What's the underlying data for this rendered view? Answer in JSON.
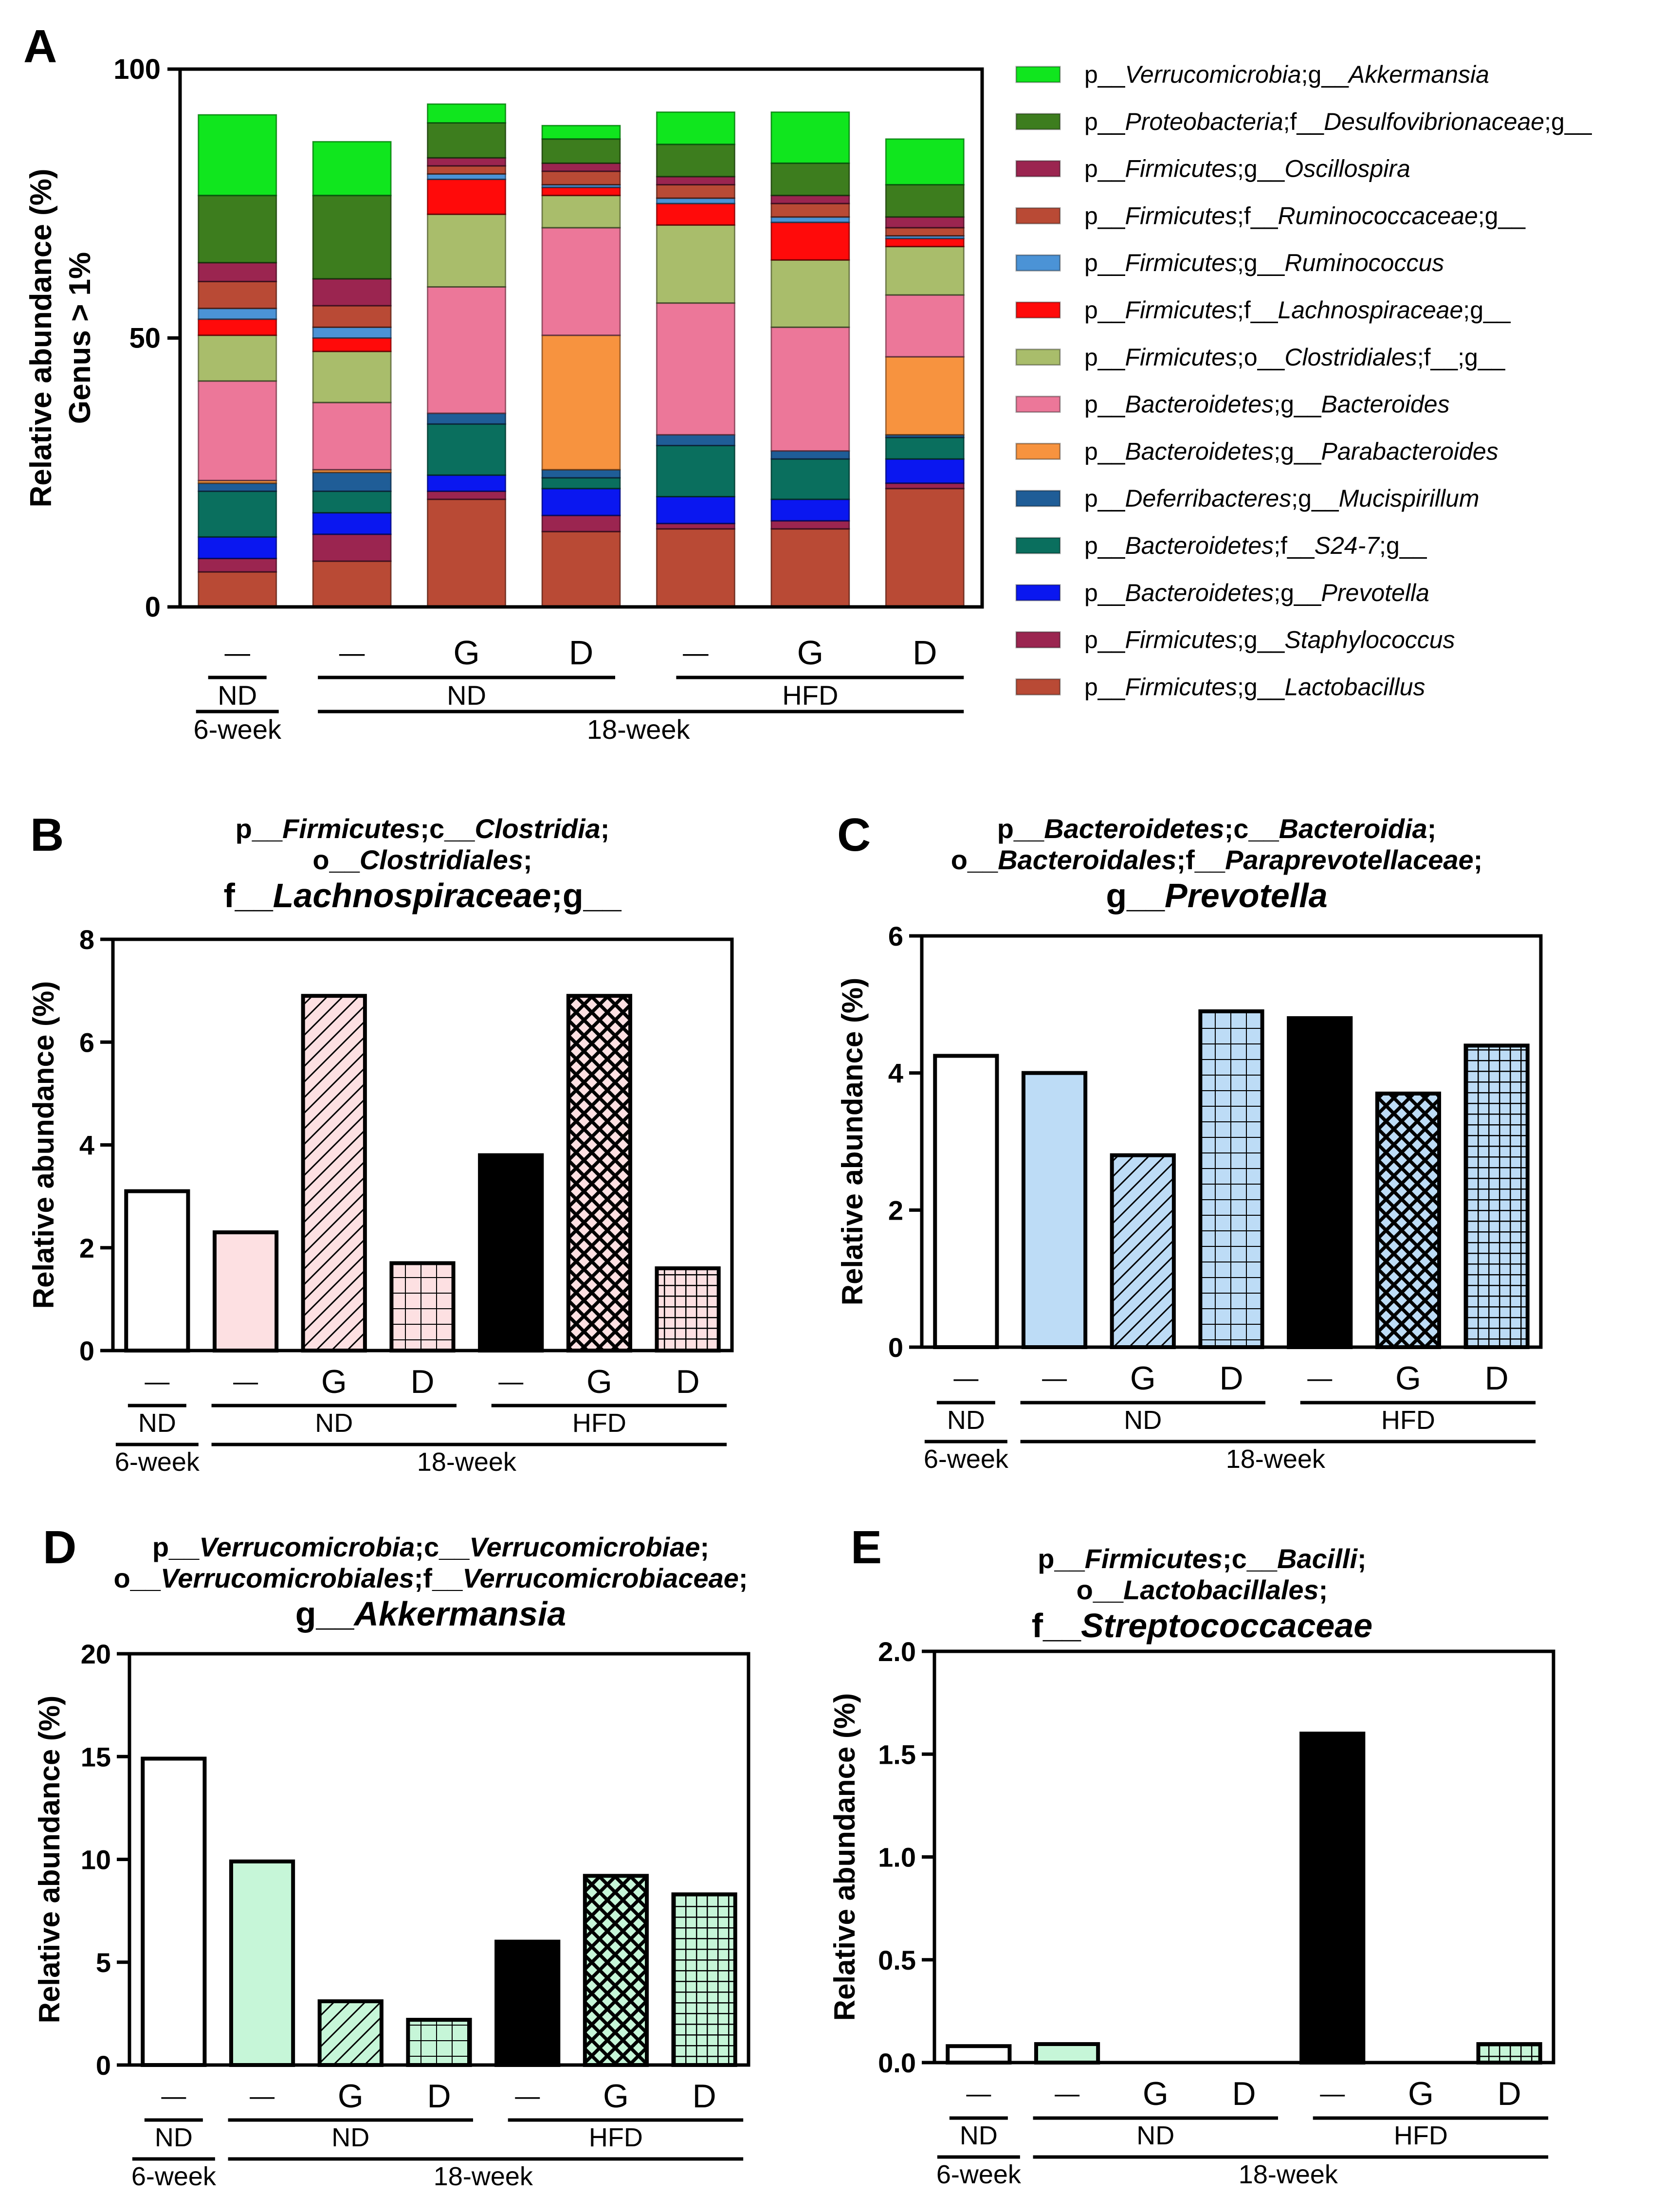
{
  "figure": {
    "panel_labels": [
      "A",
      "B",
      "C",
      "D",
      "E"
    ],
    "group_labels": [
      "ND",
      "ND",
      "HFD"
    ],
    "time_labels": [
      "6-week",
      "18-week"
    ]
  },
  "chart_data": [
    {
      "panel": "A",
      "type": "bar",
      "stacked": true,
      "ylabel": [
        "Relative abundance (%)",
        "Genus > 1%"
      ],
      "ylim": [
        0,
        100
      ],
      "yticks": [
        0,
        50,
        100
      ],
      "categories": [
        "—",
        "—",
        "G",
        "D",
        "—",
        "G",
        "D"
      ],
      "series": [
        {
          "name": "p__Firmicutes;g__Lactobacillus",
          "color": "#b94a35",
          "values": [
            6.5,
            8.5,
            20,
            14,
            14.5,
            14.5,
            22
          ]
        },
        {
          "name": "p__Firmicutes;g__Staphylococcus",
          "color": "#9b2550",
          "values": [
            2.5,
            5,
            1.5,
            3,
            1,
            1.5,
            1
          ]
        },
        {
          "name": "p__Bacteroidetes;g__Prevotella",
          "color": "#0a17f0",
          "values": [
            4,
            4,
            3,
            5,
            5,
            4,
            4.5
          ]
        },
        {
          "name": "p__Bacteroidetes;f__S24-7;g__",
          "color": "#0a6f5e",
          "values": [
            8.5,
            4,
            9.5,
            2,
            9.5,
            7.5,
            4
          ]
        },
        {
          "name": "p__Deferribacteres;g__Mucispirillum",
          "color": "#1f5d97",
          "values": [
            1.5,
            3.5,
            2,
            1.5,
            2,
            1.5,
            0.5
          ]
        },
        {
          "name": "p__Bacteroidetes;g__Parabacteroides",
          "color": "#f7933f",
          "values": [
            0.5,
            0.5,
            0,
            25,
            0,
            0,
            14.5
          ]
        },
        {
          "name": "p__Bacteroidetes;g__Bacteroides",
          "color": "#ec7799",
          "values": [
            18.5,
            12.5,
            23.5,
            20,
            24.5,
            23,
            11.5
          ]
        },
        {
          "name": "p__Firmicutes;o__Clostridiales;f__;g__",
          "color": "#a9bd6b",
          "values": [
            8.5,
            9.5,
            13.5,
            6,
            14.5,
            12.5,
            9
          ]
        },
        {
          "name": "p__Firmicutes;f__Lachnospiraceae;g__",
          "color": "#ff0a0a",
          "values": [
            3,
            2.5,
            6.5,
            1.5,
            4,
            7,
            1.5
          ]
        },
        {
          "name": "p__Firmicutes;g__Ruminococcus",
          "color": "#4b93d6",
          "values": [
            2,
            2,
            1,
            0.5,
            1,
            1,
            0.5
          ]
        },
        {
          "name": "p__Firmicutes;f__Ruminococcaceae;g__",
          "color": "#b94a35",
          "values": [
            5,
            4,
            1.5,
            2.5,
            2.5,
            2.5,
            1.5
          ]
        },
        {
          "name": "p__Firmicutes;g__Oscillospira",
          "color": "#9b2550",
          "values": [
            3.5,
            5,
            1.5,
            1.5,
            1.5,
            1.5,
            2
          ]
        },
        {
          "name": "p__Proteobacteria;f__Desulfovibrionaceae;g__",
          "color": "#3d7d1e",
          "values": [
            12.5,
            15.5,
            6.5,
            4.5,
            6,
            6,
            6
          ]
        },
        {
          "name": "p__Verrucomicrobia;g__Akkermansia",
          "color": "#10e61e",
          "values": [
            15,
            10,
            3.5,
            2.5,
            6,
            9.5,
            8.5
          ]
        }
      ],
      "legend_order": [
        "p__Verrucomicrobia;g__Akkermansia",
        "p__Proteobacteria;f__Desulfovibrionaceae;g__",
        "p__Firmicutes;g__Oscillospira",
        "p__Firmicutes;f__Ruminococcaceae;g__",
        "p__Firmicutes;g__Ruminococcus",
        "p__Firmicutes;f__Lachnospiraceae;g__",
        "p__Firmicutes;o__Clostridiales;f__;g__",
        "p__Bacteroidetes;g__Bacteroides",
        "p__Bacteroidetes;g__Parabacteroides",
        "p__Deferribacteres;g__Mucispirillum",
        "p__Bacteroidetes;f__S24-7;g__",
        "p__Bacteroidetes;g__Prevotella",
        "p__Firmicutes;g__Staphylococcus",
        "p__Firmicutes;g__Lactobacillus"
      ],
      "legend_position": "right",
      "grid": false
    },
    {
      "panel": "B",
      "type": "bar",
      "title": [
        "p__Firmicutes;c__Clostridia;",
        "o__Clostridiales;",
        "f__Lachnospiraceae;g__"
      ],
      "ylabel": "Relative abundance (%)",
      "ylim": [
        0,
        8
      ],
      "yticks": [
        0,
        2,
        4,
        6,
        8
      ],
      "categories": [
        "—",
        "—",
        "G",
        "D",
        "—",
        "G",
        "D"
      ],
      "values": [
        3.1,
        2.3,
        6.9,
        1.7,
        3.8,
        6.9,
        1.6
      ],
      "fills": [
        "#ffffff",
        "#fde0e2",
        "#fde0e2",
        "#fde0e2",
        "#000000",
        "#fde0e2",
        "#fde0e2"
      ],
      "patterns": [
        "none",
        "none",
        "diag",
        "grid",
        "none",
        "cross",
        "grid-dense"
      ],
      "grid": false
    },
    {
      "panel": "C",
      "type": "bar",
      "title": [
        "p__Bacteroidetes;c__Bacteroidia;",
        "o__Bacteroidales;f__Paraprevotellaceae;",
        "g__Prevotella"
      ],
      "ylabel": "Relative abundance (%)",
      "ylim": [
        0,
        6
      ],
      "yticks": [
        0,
        2,
        4,
        6
      ],
      "categories": [
        "—",
        "—",
        "G",
        "D",
        "—",
        "G",
        "D"
      ],
      "values": [
        4.25,
        4.0,
        2.8,
        4.9,
        4.8,
        3.7,
        4.4
      ],
      "fills": [
        "#ffffff",
        "#bddcf6",
        "#bddcf6",
        "#bddcf6",
        "#000000",
        "#bddcf6",
        "#bddcf6"
      ],
      "patterns": [
        "none",
        "none",
        "diag",
        "grid",
        "none",
        "cross",
        "grid-dense"
      ],
      "grid": false
    },
    {
      "panel": "D",
      "type": "bar",
      "title": [
        "p__Verrucomicrobia;c__Verrucomicrobiae;",
        "o__Verrucomicrobiales;f__Verrucomicrobiaceae;",
        "g__Akkermansia"
      ],
      "ylabel": "Relative abundance (%)",
      "ylim": [
        0,
        20
      ],
      "yticks": [
        0,
        5,
        10,
        15,
        20
      ],
      "categories": [
        "—",
        "—",
        "G",
        "D",
        "—",
        "G",
        "D"
      ],
      "values": [
        14.9,
        9.9,
        3.1,
        2.2,
        6.0,
        9.2,
        8.3
      ],
      "fills": [
        "#ffffff",
        "#c6f6d8",
        "#c6f6d8",
        "#c6f6d8",
        "#000000",
        "#c6f6d8",
        "#c6f6d8"
      ],
      "patterns": [
        "none",
        "none",
        "diag",
        "grid",
        "none",
        "cross",
        "grid-dense"
      ],
      "grid": false
    },
    {
      "panel": "E",
      "type": "bar",
      "title": [
        "p__Firmicutes;c__Bacilli;",
        "o__Lactobacillales;",
        "f__Streptococcaceae"
      ],
      "ylabel": "Relative abundance (%)",
      "ylim": [
        0,
        2.0
      ],
      "yticks": [
        0.0,
        0.5,
        1.0,
        1.5,
        2.0
      ],
      "ytick_labels": [
        "0.0",
        "0.5",
        "1.0",
        "1.5",
        "2.0"
      ],
      "categories": [
        "—",
        "—",
        "G",
        "D",
        "—",
        "G",
        "D"
      ],
      "values": [
        0.08,
        0.09,
        0,
        0,
        1.6,
        0,
        0.09
      ],
      "fills": [
        "#ffffff",
        "#c6f6d8",
        "#c6f6d8",
        "#c6f6d8",
        "#000000",
        "#c6f6d8",
        "#c6f6d8"
      ],
      "patterns": [
        "none",
        "none",
        "diag",
        "grid",
        "none",
        "cross",
        "grid-dense"
      ],
      "grid": false
    }
  ]
}
